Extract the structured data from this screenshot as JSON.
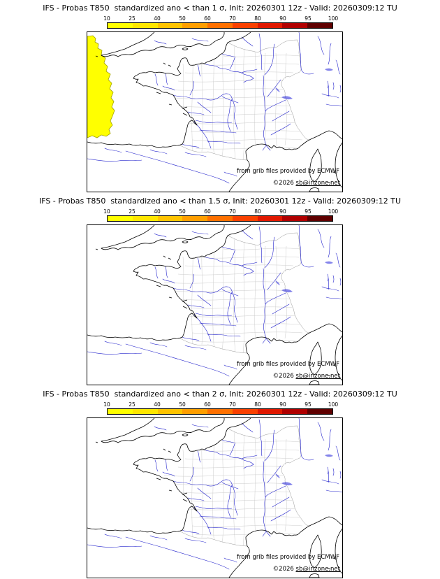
{
  "panels": [
    {
      "title": "IFS - Probas T850  standardized ano < than 1 σ, Init: 20260301 12z - Valid: 20260309:12 TU",
      "shaded": true
    },
    {
      "title": "IFS - Probas T850  standardized ano < than 1.5 σ, Init: 20260301 12z - Valid: 20260309:12 TU",
      "shaded": false
    },
    {
      "title": "IFS - Probas T850  standardized ano < than 2 σ, Init: 20260301 12z - Valid: 20260309:12 TU",
      "shaded": false
    }
  ],
  "colorbar": {
    "tick_labels": [
      "10",
      "25",
      "40",
      "50",
      "60",
      "70",
      "80",
      "90",
      "95",
      "100"
    ],
    "segment_colors": [
      "#ffff00",
      "#ffe600",
      "#ffc300",
      "#ff9e00",
      "#ff7000",
      "#fa4000",
      "#e01800",
      "#b00000",
      "#5f0000"
    ]
  },
  "map_footer": {
    "credit": "from grib files provided by ECMWF",
    "copyright_prefix": "©2026 ",
    "copyright_email": "sb@irizone.net"
  },
  "map": {
    "region": "France",
    "shade_color": "#ffff00",
    "shade_edge_color": "#a0a000",
    "coast_color": "#000000",
    "river_color": "#2222cc",
    "department_line_color": "#c6c6c6"
  }
}
